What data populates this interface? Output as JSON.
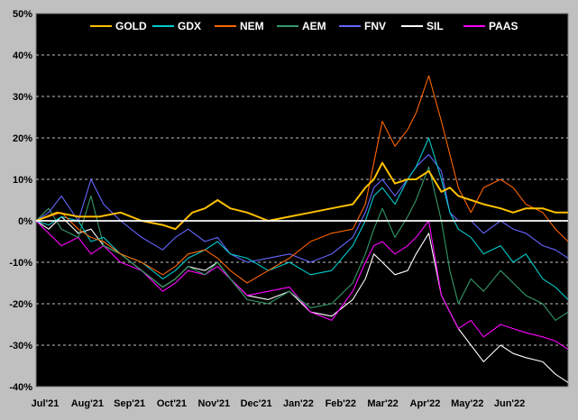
{
  "chart_data": {
    "type": "line",
    "title": "",
    "xlabel": "",
    "ylabel": "",
    "ylim": [
      -40,
      50
    ],
    "y_ticks": [
      -40,
      -30,
      -20,
      -10,
      0,
      10,
      20,
      30,
      40,
      50
    ],
    "y_tick_labels": [
      "-40%",
      "-30%",
      "-20%",
      "-10%",
      "0%",
      "10%",
      "20%",
      "30%",
      "40%",
      "50%"
    ],
    "x_tick_labels": [
      "Jul'21",
      "Aug'21",
      "Sep'21",
      "Oct'21",
      "Nov'21",
      "Dec'21",
      "Jan'22",
      "Feb'22",
      "Mar'22",
      "Apr'22",
      "May'22",
      "Jun'22"
    ],
    "x_range": [
      0,
      12.6
    ],
    "legend_position": "top",
    "grid": "horizontal dashed",
    "colors": {
      "background": "#000000",
      "frame": "#c0c0c0",
      "grid": "#ffffff",
      "zero_line": "#ffffff",
      "text": "#000000"
    },
    "series": [
      {
        "name": "GOLD",
        "color": "#ffc000",
        "x": [
          0,
          0.5,
          1,
          1.5,
          2,
          2.5,
          3,
          3.3,
          3.7,
          4,
          4.3,
          4.6,
          5,
          5.5,
          6,
          6.5,
          7,
          7.5,
          7.8,
          8,
          8.2,
          8.5,
          8.8,
          9,
          9.3,
          9.6,
          9.8,
          10,
          10.3,
          10.6,
          11,
          11.3,
          11.6,
          12,
          12.3,
          12.6
        ],
        "y": [
          0,
          2,
          1,
          1,
          2,
          0,
          -1,
          -2,
          2,
          3,
          5,
          3,
          2,
          0,
          1,
          2,
          3,
          4,
          8,
          10,
          14,
          9,
          10,
          10,
          12,
          7,
          8,
          6,
          5,
          4,
          3,
          2,
          3,
          3,
          2,
          2
        ]
      },
      {
        "name": "GDX",
        "color": "#00cccc",
        "x": [
          0,
          0.3,
          0.6,
          1,
          1.3,
          1.6,
          2,
          2.5,
          3,
          3.3,
          3.6,
          4,
          4.3,
          4.6,
          5,
          5.5,
          6,
          6.5,
          7,
          7.5,
          7.8,
          8,
          8.2,
          8.5,
          8.8,
          9,
          9.3,
          9.6,
          9.8,
          10,
          10.3,
          10.6,
          11,
          11.3,
          11.6,
          12,
          12.3,
          12.6
        ],
        "y": [
          0,
          -1,
          1,
          0,
          -5,
          -4,
          -8,
          -10,
          -14,
          -12,
          -9,
          -7,
          -5,
          -8,
          -9,
          -12,
          -10,
          -13,
          -12,
          -6,
          0,
          6,
          8,
          4,
          10,
          13,
          20,
          10,
          2,
          -2,
          -4,
          -8,
          -6,
          -10,
          -8,
          -14,
          -16,
          -19
        ]
      },
      {
        "name": "NEM",
        "color": "#ff6600",
        "x": [
          0,
          0.3,
          0.6,
          1,
          1.3,
          1.6,
          2,
          2.5,
          3,
          3.3,
          3.6,
          4,
          4.3,
          4.6,
          5,
          5.5,
          6,
          6.5,
          7,
          7.5,
          7.8,
          8,
          8.2,
          8.5,
          8.8,
          9,
          9.3,
          9.6,
          9.8,
          10,
          10.3,
          10.6,
          11,
          11.3,
          11.6,
          12,
          12.3,
          12.6
        ],
        "y": [
          0,
          1,
          2,
          -2,
          -4,
          -5,
          -8,
          -10,
          -13,
          -11,
          -8,
          -7,
          -9,
          -12,
          -15,
          -12,
          -9,
          -5,
          -3,
          -2,
          4,
          14,
          24,
          18,
          22,
          26,
          35,
          24,
          16,
          8,
          2,
          8,
          10,
          8,
          4,
          2,
          -2,
          -5
        ]
      },
      {
        "name": "AEM",
        "color": "#339966",
        "x": [
          0,
          0.3,
          0.6,
          1,
          1.3,
          1.6,
          2,
          2.5,
          3,
          3.3,
          3.6,
          4,
          4.3,
          4.6,
          5,
          5.5,
          6,
          6.5,
          7,
          7.5,
          7.8,
          8,
          8.2,
          8.5,
          8.8,
          9,
          9.3,
          9.6,
          9.8,
          10,
          10.3,
          10.6,
          11,
          11.3,
          11.6,
          12,
          12.3,
          12.6
        ],
        "y": [
          0,
          3,
          -2,
          -4,
          6,
          -6,
          -8,
          -12,
          -16,
          -14,
          -11,
          -13,
          -10,
          -14,
          -19,
          -20,
          -17,
          -21,
          -20,
          -15,
          -8,
          -2,
          3,
          -4,
          1,
          5,
          13,
          0,
          -12,
          -20,
          -14,
          -17,
          -12,
          -15,
          -18,
          -20,
          -24,
          -22
        ]
      },
      {
        "name": "FNV",
        "color": "#6666ff",
        "x": [
          0,
          0.3,
          0.6,
          1,
          1.3,
          1.6,
          2,
          2.5,
          3,
          3.3,
          3.6,
          4,
          4.3,
          4.6,
          5,
          5.5,
          6,
          6.5,
          7,
          7.5,
          7.8,
          8,
          8.2,
          8.5,
          8.8,
          9,
          9.3,
          9.6,
          9.8,
          10,
          10.3,
          10.6,
          11,
          11.3,
          11.6,
          12,
          12.3,
          12.6
        ],
        "y": [
          0,
          2,
          6,
          0,
          10,
          4,
          0,
          -4,
          -7,
          -4,
          -2,
          -5,
          -4,
          -8,
          -10,
          -9,
          -8,
          -10,
          -8,
          -4,
          2,
          8,
          10,
          6,
          10,
          13,
          16,
          12,
          2,
          0,
          0,
          -3,
          0,
          -2,
          -3,
          -6,
          -7,
          -9
        ]
      },
      {
        "name": "SIL",
        "color": "#ffffff",
        "x": [
          0,
          0.3,
          0.6,
          1,
          1.3,
          1.6,
          2,
          2.5,
          3,
          3.3,
          3.6,
          4,
          4.3,
          4.6,
          5,
          5.5,
          6,
          6.5,
          7,
          7.5,
          7.8,
          8,
          8.2,
          8.5,
          8.8,
          9,
          9.3,
          9.6,
          9.8,
          10,
          10.3,
          10.6,
          11,
          11.3,
          11.6,
          12,
          12.3,
          12.6
        ],
        "y": [
          0,
          -2,
          1,
          -3,
          -2,
          -6,
          -8,
          -12,
          -16,
          -14,
          -11,
          -12,
          -10,
          -14,
          -18,
          -19,
          -17,
          -22,
          -23,
          -19,
          -14,
          -8,
          -10,
          -13,
          -12,
          -8,
          -3,
          -18,
          -22,
          -26,
          -30,
          -34,
          -30,
          -32,
          -33,
          -34,
          -37,
          -39
        ]
      },
      {
        "name": "PAAS",
        "color": "#ff00ff",
        "x": [
          0,
          0.3,
          0.6,
          1,
          1.3,
          1.6,
          2,
          2.5,
          3,
          3.3,
          3.6,
          4,
          4.3,
          4.6,
          5,
          5.5,
          6,
          6.5,
          7,
          7.5,
          7.8,
          8,
          8.2,
          8.5,
          8.8,
          9,
          9.3,
          9.6,
          9.8,
          10,
          10.3,
          10.6,
          11,
          11.3,
          11.6,
          12,
          12.3,
          12.6
        ],
        "y": [
          0,
          -3,
          -6,
          -4,
          -8,
          -6,
          -10,
          -12,
          -17,
          -15,
          -12,
          -13,
          -11,
          -14,
          -18,
          -17,
          -16,
          -22,
          -24,
          -17,
          -10,
          -6,
          -5,
          -8,
          -6,
          -4,
          0,
          -18,
          -22,
          -26,
          -24,
          -28,
          -25,
          -26,
          -27,
          -28,
          -29,
          -31
        ]
      }
    ]
  }
}
